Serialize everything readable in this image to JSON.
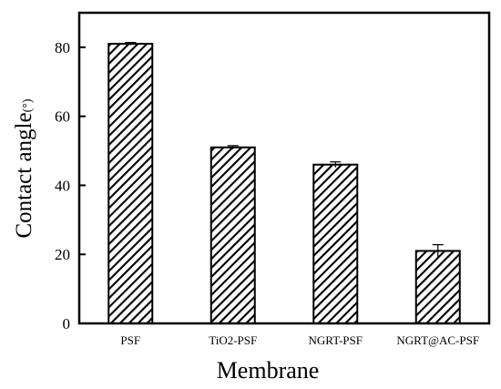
{
  "chart_data": {
    "type": "bar",
    "title": "",
    "xlabel": "Membrane",
    "ylabel": "Contact angle",
    "ylabel_unit": "(°)",
    "categories": [
      "PSF",
      "TiO2-PSF",
      "NGRT-PSF",
      "NGRT@AC-PSF"
    ],
    "values": [
      81,
      51,
      46,
      21
    ],
    "errors": [
      0.4,
      0.5,
      0.8,
      1.8
    ],
    "ylim": [
      0,
      90
    ],
    "yticks": [
      0,
      20,
      40,
      60,
      80
    ],
    "bar_fill": "hatched",
    "bar_color": "#000000",
    "grid": false,
    "legend": "none"
  }
}
